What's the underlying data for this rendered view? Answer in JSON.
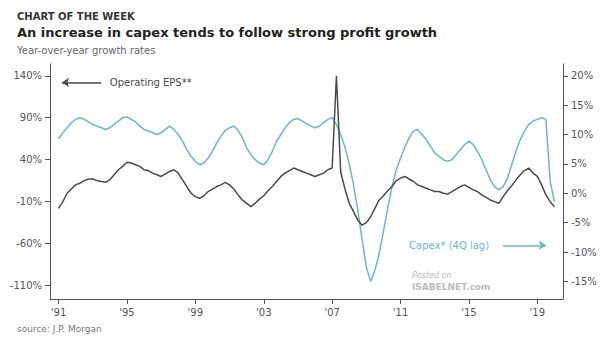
{
  "chart_data": {
    "type": "line",
    "header": "CHART OF THE WEEK",
    "title": "An increase in capex tends to follow strong profit growth",
    "subtitle": "Year-over-year growth rates",
    "source": "source: J.P. Morgan",
    "watermark": [
      "Posted on",
      "ISABELNET.com"
    ],
    "grid": false,
    "xlim": [
      1990.5,
      2020.5
    ],
    "xticks": [
      {
        "value": 1991,
        "label": "'91"
      },
      {
        "value": 1995,
        "label": "'95"
      },
      {
        "value": 1999,
        "label": "'99"
      },
      {
        "value": 2003,
        "label": "'03"
      },
      {
        "value": 2007,
        "label": "'07"
      },
      {
        "value": 2011,
        "label": "'11"
      },
      {
        "value": 2015,
        "label": "'15"
      },
      {
        "value": 2019,
        "label": "'19"
      }
    ],
    "ylim": [
      -126,
      154
    ],
    "yticks": [
      {
        "value": -110,
        "label": "-110%"
      },
      {
        "value": -60,
        "label": "-60%"
      },
      {
        "value": -10,
        "label": "-10%"
      },
      {
        "value": 40,
        "label": "40%"
      },
      {
        "value": 90,
        "label": "90%"
      },
      {
        "value": 140,
        "label": "140%"
      }
    ],
    "y2lim": [
      -18,
      22
    ],
    "y2ticks": [
      {
        "value": -15,
        "label": "-15%"
      },
      {
        "value": -10,
        "label": "-10%"
      },
      {
        "value": -5,
        "label": "-5%"
      },
      {
        "value": 0,
        "label": "0%"
      },
      {
        "value": 5,
        "label": "5%"
      },
      {
        "value": 10,
        "label": "10%"
      },
      {
        "value": 15,
        "label": "15%"
      },
      {
        "value": 20,
        "label": "20%"
      }
    ],
    "x": [
      1991.0,
      1991.25,
      1991.5,
      1991.75,
      1992.0,
      1992.25,
      1992.5,
      1992.75,
      1993.0,
      1993.25,
      1993.5,
      1993.75,
      1994.0,
      1994.25,
      1994.5,
      1994.75,
      1995.0,
      1995.25,
      1995.5,
      1995.75,
      1996.0,
      1996.25,
      1996.5,
      1996.75,
      1997.0,
      1997.25,
      1997.5,
      1997.75,
      1998.0,
      1998.25,
      1998.5,
      1998.75,
      1999.0,
      1999.25,
      1999.5,
      1999.75,
      2000.0,
      2000.25,
      2000.5,
      2000.75,
      2001.0,
      2001.25,
      2001.5,
      2001.75,
      2002.0,
      2002.25,
      2002.5,
      2002.75,
      2003.0,
      2003.25,
      2003.5,
      2003.75,
      2004.0,
      2004.25,
      2004.5,
      2004.75,
      2005.0,
      2005.25,
      2005.5,
      2005.75,
      2006.0,
      2006.25,
      2006.5,
      2006.75,
      2007.0,
      2007.25,
      2007.5,
      2007.75,
      2008.0,
      2008.25,
      2008.5,
      2008.75,
      2009.0,
      2009.25,
      2009.5,
      2009.75,
      2010.0,
      2010.25,
      2010.5,
      2010.75,
      2011.0,
      2011.25,
      2011.5,
      2011.75,
      2012.0,
      2012.25,
      2012.5,
      2012.75,
      2013.0,
      2013.25,
      2013.5,
      2013.75,
      2014.0,
      2014.25,
      2014.5,
      2014.75,
      2015.0,
      2015.25,
      2015.5,
      2015.75,
      2016.0,
      2016.25,
      2016.5,
      2016.75,
      2017.0,
      2017.25,
      2017.5,
      2017.75,
      2018.0,
      2018.25,
      2018.5,
      2018.75,
      2019.0,
      2019.25,
      2019.5,
      2019.75,
      2020.0
    ],
    "series": [
      {
        "name": "Capex* (4Q lag)",
        "color": "#6ab4d4",
        "values": [
          65,
          72,
          78,
          84,
          88,
          90,
          88,
          85,
          82,
          80,
          78,
          76,
          78,
          82,
          86,
          90,
          91,
          88,
          85,
          80,
          76,
          74,
          72,
          70,
          72,
          76,
          80,
          76,
          70,
          62,
          52,
          44,
          38,
          34,
          36,
          42,
          50,
          60,
          68,
          75,
          78,
          80,
          75,
          66,
          54,
          46,
          40,
          36,
          34,
          40,
          50,
          62,
          70,
          78,
          84,
          88,
          89,
          86,
          83,
          80,
          78,
          80,
          84,
          88,
          90,
          82,
          70,
          55,
          35,
          10,
          -20,
          -55,
          -88,
          -105,
          -92,
          -72,
          -45,
          -18,
          8,
          28,
          42,
          55,
          66,
          74,
          76,
          70,
          64,
          56,
          48,
          44,
          40,
          38,
          40,
          46,
          52,
          58,
          62,
          58,
          50,
          40,
          28,
          16,
          8,
          4,
          8,
          18,
          34,
          50,
          64,
          74,
          82,
          86,
          88,
          90,
          88,
          14,
          -10
        ]
      },
      {
        "name": "Operating EPS**",
        "color": "#4a4a4a",
        "values": [
          -18,
          -10,
          0,
          5,
          10,
          12,
          15,
          17,
          17,
          15,
          14,
          13,
          16,
          22,
          28,
          32,
          37,
          36,
          34,
          32,
          28,
          27,
          24,
          22,
          20,
          23,
          26,
          28,
          24,
          16,
          8,
          0,
          -4,
          -6,
          -3,
          2,
          5,
          8,
          10,
          13,
          10,
          5,
          -2,
          -8,
          -12,
          -16,
          -12,
          -7,
          -3,
          3,
          8,
          14,
          20,
          24,
          27,
          30,
          28,
          26,
          24,
          22,
          20,
          22,
          24,
          28,
          30,
          140,
          25,
          5,
          -12,
          -22,
          -32,
          -38,
          -35,
          -28,
          -18,
          -8,
          -3,
          3,
          8,
          15,
          18,
          20,
          17,
          14,
          10,
          8,
          6,
          4,
          2,
          2,
          0,
          -1,
          2,
          5,
          8,
          10,
          7,
          4,
          2,
          -2,
          -5,
          -8,
          -10,
          -12,
          -4,
          3,
          9,
          16,
          22,
          27,
          30,
          24,
          20,
          10,
          -2,
          -10,
          -16
        ]
      }
    ],
    "annotations": [
      {
        "text": "Operating EPS**",
        "x": 1994.0,
        "y": 132,
        "arrow": [
          1993.5,
          1991.2
        ],
        "color": "#4a4a4a"
      },
      {
        "text": "Capex* (4Q lag)",
        "x": 2011.5,
        "y": -62,
        "arrow": [
          2017.0,
          2019.5
        ],
        "color": "#6ab4d4"
      }
    ]
  }
}
